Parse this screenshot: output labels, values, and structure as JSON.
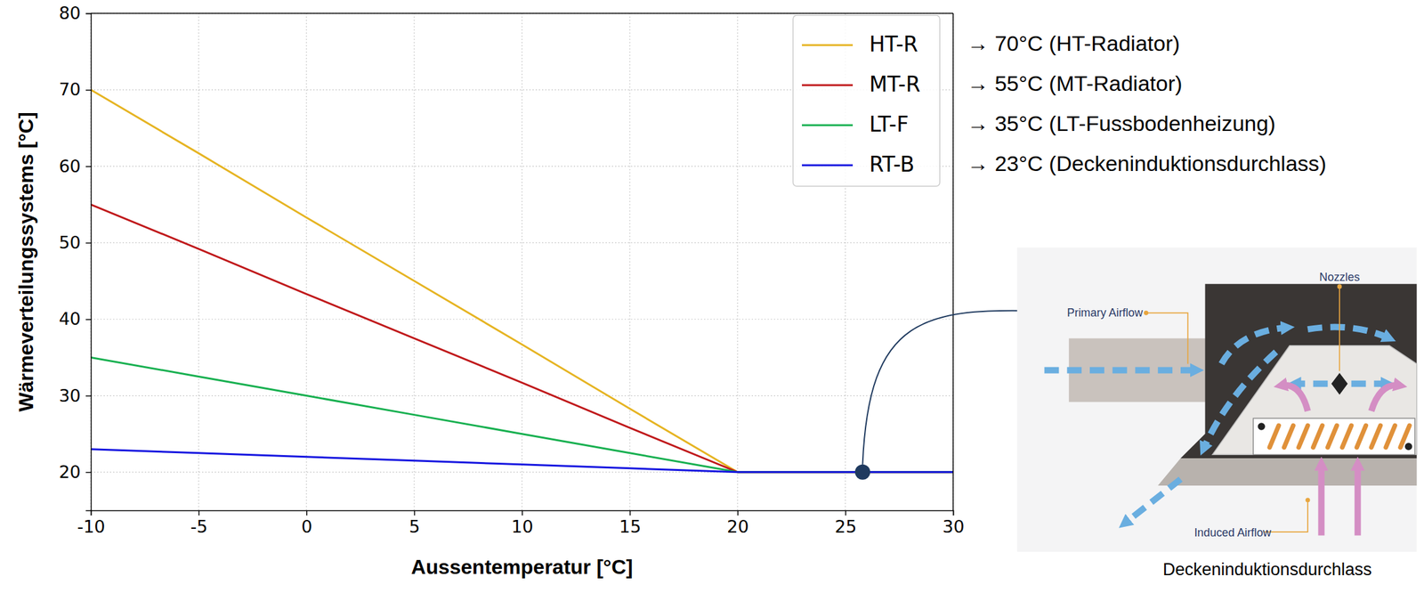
{
  "chart_data": {
    "type": "line",
    "x_label": "Aussentemperatur [°C]",
    "y_label": "Wärmeverteilungssystems [°C]",
    "x": [
      -10,
      -5,
      0,
      5,
      10,
      15,
      20,
      25,
      30
    ],
    "series": [
      {
        "name": "HT-R",
        "color": "#e6b422",
        "values": [
          70,
          61.7,
          53.3,
          45,
          36.7,
          28.3,
          20,
          20,
          20
        ]
      },
      {
        "name": "MT-R",
        "color": "#c0191b",
        "values": [
          55,
          49.2,
          43.3,
          37.5,
          31.7,
          25.8,
          20,
          20,
          20
        ]
      },
      {
        "name": "LT-F",
        "color": "#17b050",
        "values": [
          35,
          32.5,
          30,
          27.5,
          25,
          22.5,
          20,
          20,
          20
        ]
      },
      {
        "name": "RT-B",
        "color": "#1515e0",
        "values": [
          23,
          22.5,
          22,
          21.5,
          21,
          20.5,
          20,
          20,
          20
        ]
      }
    ],
    "xlim": [
      -10,
      30
    ],
    "ylim": [
      15,
      80
    ],
    "xticks": [
      -10,
      -5,
      0,
      5,
      10,
      15,
      20,
      25,
      30
    ],
    "yticks": [
      20,
      30,
      40,
      50,
      60,
      70,
      80
    ],
    "grid": true,
    "legend": "upper right",
    "annotations": [
      "→ 70°C (HT-Radiator)",
      "→ 55°C (MT-Radiator)",
      "→ 35°C (LT-Fussbodenheizung)",
      "→ 23°C (Deckeninduktionsdurchlass)"
    ],
    "highlight_point": {
      "x": 25.8,
      "y": 20
    }
  },
  "diagram": {
    "labels": [
      "Primary Airflow",
      "Nozzles",
      "Induced Airflow"
    ],
    "caption": "Deckeninduktionsdurchlass"
  }
}
